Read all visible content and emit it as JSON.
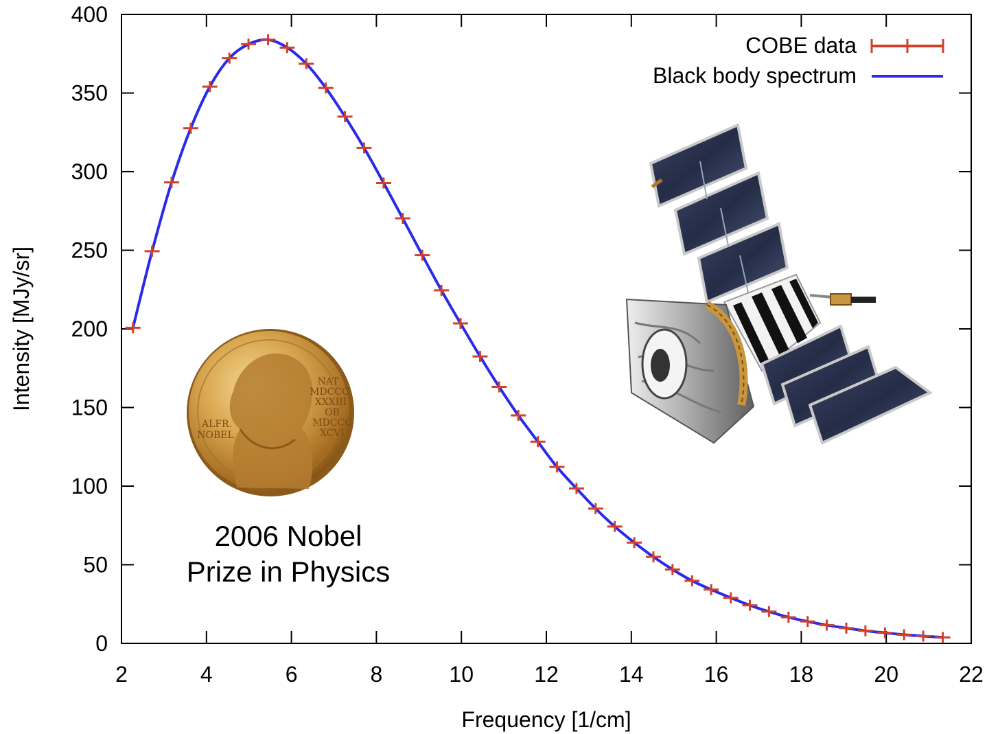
{
  "chart_data": {
    "type": "scatter",
    "title": "",
    "xlabel": "Frequency [1/cm]",
    "ylabel": "Intensity [MJy/sr]",
    "xlim": [
      2,
      22
    ],
    "ylim": [
      0,
      400
    ],
    "xticks": [
      2,
      4,
      6,
      8,
      10,
      12,
      14,
      16,
      18,
      20,
      22
    ],
    "yticks": [
      0,
      50,
      100,
      150,
      200,
      250,
      300,
      350,
      400
    ],
    "grid": false,
    "legend_position": "top-right",
    "series": [
      {
        "name": "COBE data",
        "style": "points-with-errorbars",
        "color": "#d2402a",
        "x": [
          2.27,
          2.72,
          3.18,
          3.63,
          4.08,
          4.54,
          4.99,
          5.45,
          5.9,
          6.35,
          6.81,
          7.26,
          7.71,
          8.17,
          8.62,
          9.08,
          9.53,
          9.98,
          10.44,
          10.89,
          11.34,
          11.8,
          12.25,
          12.71,
          13.16,
          13.61,
          14.07,
          14.52,
          14.97,
          15.43,
          15.88,
          16.34,
          16.79,
          17.24,
          17.7,
          18.15,
          18.6,
          19.06,
          19.51,
          19.97,
          20.42,
          20.87,
          21.33
        ],
        "y": [
          200.7,
          249.4,
          293.2,
          327.6,
          354.1,
          372.2,
          381.1,
          383.9,
          378.9,
          368.6,
          353.2,
          335.0,
          315.1,
          292.8,
          270.3,
          246.9,
          224.5,
          203.5,
          182.5,
          163.1,
          145.0,
          128.3,
          112.2,
          98.5,
          85.7,
          74.3,
          64.1,
          55.0,
          47.0,
          39.8,
          34.2,
          29.0,
          24.2,
          20.2,
          16.6,
          13.9,
          11.6,
          9.7,
          8.0,
          6.7,
          5.5,
          4.6,
          3.8
        ]
      },
      {
        "name": "Black body spectrum",
        "style": "line",
        "color": "#2a2ae8",
        "x": [
          2.27,
          2.72,
          3.18,
          3.63,
          4.08,
          4.54,
          4.99,
          5.45,
          5.9,
          6.35,
          6.81,
          7.26,
          7.71,
          8.17,
          8.62,
          9.08,
          9.53,
          9.98,
          10.44,
          10.89,
          11.34,
          11.8,
          12.25,
          12.71,
          13.16,
          13.61,
          14.07,
          14.52,
          14.97,
          15.43,
          15.88,
          16.34,
          16.79,
          17.24,
          17.7,
          18.15,
          18.6,
          19.06,
          19.51,
          19.97,
          20.42,
          20.87,
          21.33
        ],
        "y": [
          200.7,
          249.4,
          293.2,
          327.6,
          354.1,
          372.2,
          381.1,
          383.9,
          378.9,
          368.6,
          353.2,
          335.0,
          315.1,
          292.8,
          270.3,
          246.9,
          224.5,
          203.5,
          182.5,
          163.1,
          145.0,
          128.3,
          112.2,
          98.5,
          85.7,
          74.3,
          64.1,
          55.0,
          47.0,
          39.8,
          34.2,
          29.0,
          24.2,
          20.2,
          16.6,
          13.9,
          11.6,
          9.7,
          8.0,
          6.7,
          5.5,
          4.6,
          3.8
        ]
      }
    ],
    "annotations": {
      "line1": "2006 Nobel",
      "line2": "Prize in Physics"
    }
  },
  "medal": {
    "left_text_1": "ALFR.",
    "left_text_2": "NOBEL",
    "right_lines": [
      "NAT",
      "MDCCC",
      "XXXIII",
      "OB",
      "MDCCC",
      "XCVI"
    ]
  },
  "colors": {
    "data": "#d2402a",
    "curve": "#2a2ae8",
    "gold": "#c8963e"
  }
}
